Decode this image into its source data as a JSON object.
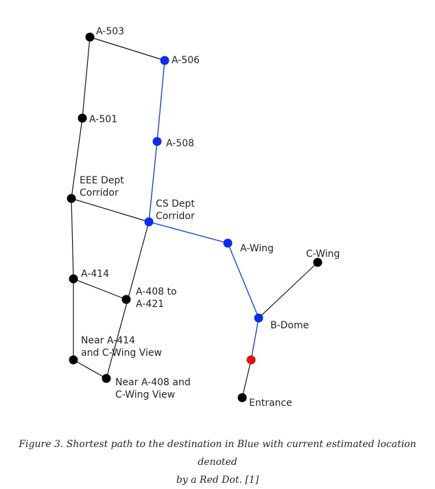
{
  "colors": {
    "path": "#1a3fd6",
    "node_default": "#000000",
    "node_path": "#0a2cf0",
    "node_current": "#e01010",
    "edge_default": "#111111"
  },
  "graph": {
    "nodes": [
      {
        "id": "a503",
        "label": [
          "A-503"
        ],
        "state": "default"
      },
      {
        "id": "a506",
        "label": [
          "A-506"
        ],
        "state": "path"
      },
      {
        "id": "a501",
        "label": [
          "A-501"
        ],
        "state": "default"
      },
      {
        "id": "a508",
        "label": [
          "A-508"
        ],
        "state": "path"
      },
      {
        "id": "eee",
        "label": [
          "EEE Dept",
          "Corridor"
        ],
        "state": "default"
      },
      {
        "id": "cs",
        "label": [
          "CS Dept",
          "Corridor"
        ],
        "state": "path"
      },
      {
        "id": "awing",
        "label": [
          "A-Wing"
        ],
        "state": "path"
      },
      {
        "id": "cwing",
        "label": [
          "C-Wing"
        ],
        "state": "default"
      },
      {
        "id": "a414",
        "label": [
          "A-414"
        ],
        "state": "default"
      },
      {
        "id": "a408",
        "label": [
          "A-408 to",
          "A-421"
        ],
        "state": "default"
      },
      {
        "id": "bdome",
        "label": [
          "B-Dome"
        ],
        "state": "path"
      },
      {
        "id": "near414",
        "label": [
          "Near A-414",
          "and C-Wing View"
        ],
        "state": "default"
      },
      {
        "id": "current",
        "label": [],
        "state": "current"
      },
      {
        "id": "near408",
        "label": [
          "Near A-408 and",
          "C-Wing View"
        ],
        "state": "default"
      },
      {
        "id": "entrance",
        "label": [
          "Entrance"
        ],
        "state": "default"
      }
    ],
    "edges": [
      {
        "from": "a503",
        "to": "a506",
        "path": false
      },
      {
        "from": "a503",
        "to": "a501",
        "path": false
      },
      {
        "from": "a501",
        "to": "eee",
        "path": false
      },
      {
        "from": "eee",
        "to": "cs",
        "path": false
      },
      {
        "from": "eee",
        "to": "a414",
        "path": false
      },
      {
        "from": "a414",
        "to": "a408",
        "path": false
      },
      {
        "from": "a414",
        "to": "near414",
        "path": false
      },
      {
        "from": "near414",
        "to": "near408",
        "path": false
      },
      {
        "from": "cs",
        "to": "near408",
        "path": false
      },
      {
        "from": "bdome",
        "to": "cwing",
        "path": false
      },
      {
        "from": "current",
        "to": "entrance",
        "path": false
      },
      {
        "from": "a506",
        "to": "a508",
        "path": true
      },
      {
        "from": "a508",
        "to": "cs",
        "path": true
      },
      {
        "from": "cs",
        "to": "awing",
        "path": true
      },
      {
        "from": "awing",
        "to": "bdome",
        "path": true
      },
      {
        "from": "bdome",
        "to": "current",
        "path": true
      }
    ]
  },
  "caption": {
    "line1": "Figure 3. Shortest path to the destination in Blue with current estimated location denoted",
    "line2": "by a Red Dot. [1]"
  }
}
